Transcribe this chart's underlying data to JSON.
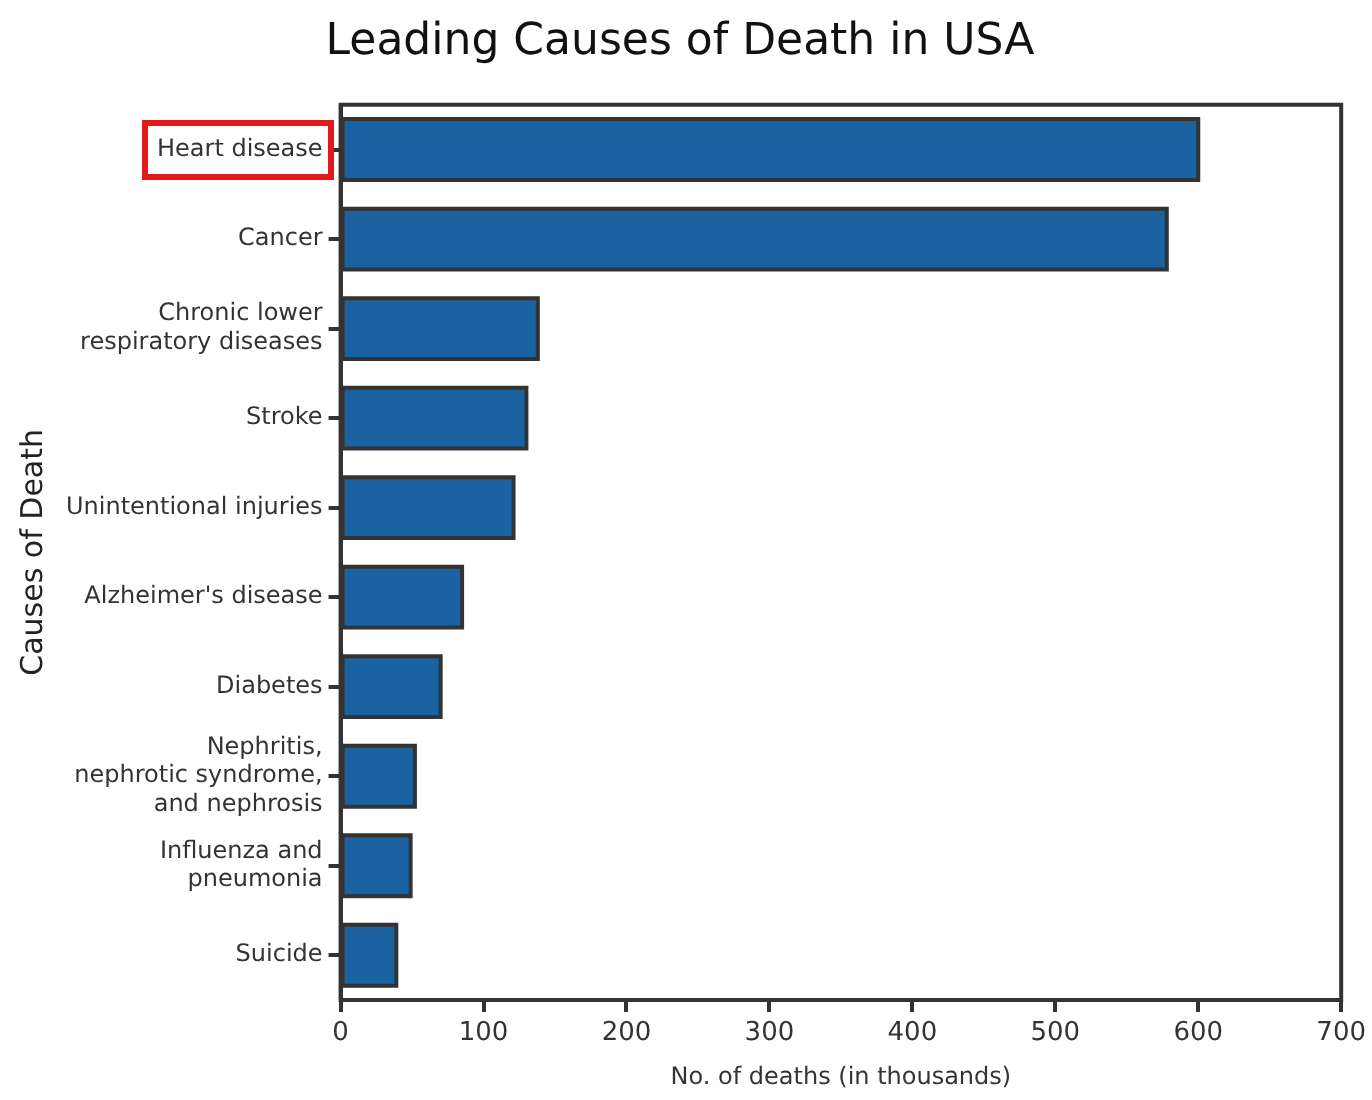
{
  "chart_data": {
    "type": "bar",
    "orientation": "horizontal",
    "title": "Leading Causes of Death in USA",
    "xlabel": "No. of deaths (in thousands)",
    "ylabel": "Causes of Death",
    "categories": [
      "Heart disease",
      "Cancer",
      "Chronic lower\nrespiratory diseases",
      "Stroke",
      "Unintentional injuries",
      "Alzheimer's disease",
      "Diabetes",
      "Nephritis,\nnephrotic syndrome,\nand nephrosis",
      "Influenza and\npneumonia",
      "Suicide"
    ],
    "values": [
      600,
      578,
      138,
      130,
      121,
      85,
      70,
      52,
      49,
      39
    ],
    "color": "#1a63a0",
    "xlim": [
      0,
      700
    ],
    "xticks": [
      0,
      100,
      200,
      300,
      400,
      500,
      600,
      700
    ],
    "grid": false,
    "legend": false
  }
}
